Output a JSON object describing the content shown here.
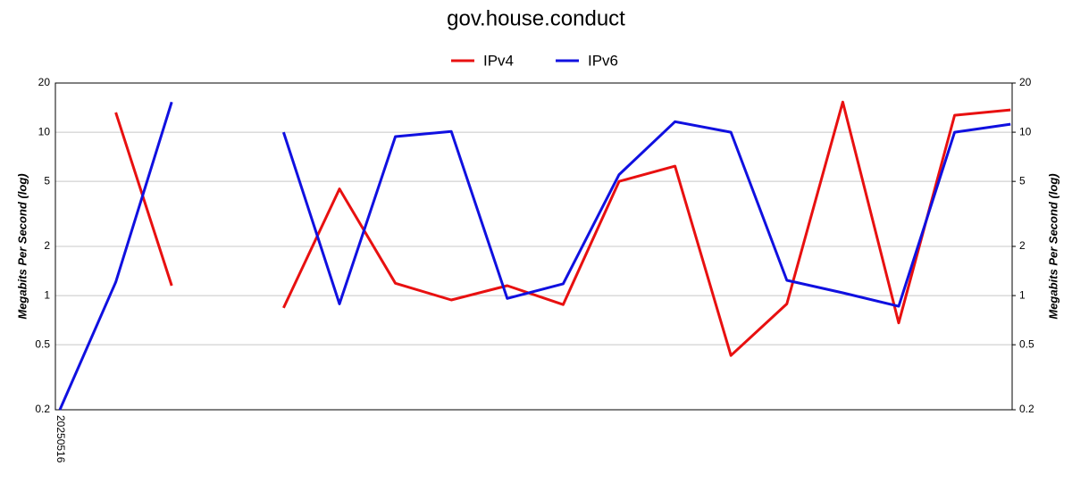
{
  "chart_data": {
    "type": "line",
    "title": "gov.house.conduct",
    "y_label": "Megabits Per Second (log)",
    "y2_label": "Megabits Per Second (log)",
    "log_scale": true,
    "grid": true,
    "legend": "top",
    "categories": [
      "20250516",
      null,
      null,
      null,
      null,
      null,
      null,
      null,
      null,
      null,
      null,
      null,
      null,
      null,
      null,
      null,
      null,
      null
    ],
    "series": [
      {
        "name": "IPv4",
        "color": "#e81010",
        "values": [
          null,
          13.2,
          1.15,
          null,
          0.84,
          4.5,
          1.19,
          0.94,
          1.15,
          0.88,
          5.0,
          6.2,
          0.43,
          0.89,
          15.3,
          0.68,
          12.7,
          13.7
        ]
      },
      {
        "name": "IPv6",
        "color": "#1010e0",
        "values": [
          0.2,
          1.21,
          15.3,
          null,
          10,
          0.89,
          9.4,
          10.1,
          0.96,
          1.18,
          5.5,
          11.6,
          10,
          1.24,
          1.04,
          0.86,
          10,
          11.2
        ]
      }
    ],
    "ylim": [
      0.2,
      20
    ],
    "yticks": [
      0.2,
      0.5,
      1,
      2,
      5,
      10,
      20
    ],
    "y2lim": [
      0.2,
      20
    ],
    "y2ticks": [
      0.2,
      0.5,
      1,
      2,
      5,
      10,
      20
    ]
  }
}
